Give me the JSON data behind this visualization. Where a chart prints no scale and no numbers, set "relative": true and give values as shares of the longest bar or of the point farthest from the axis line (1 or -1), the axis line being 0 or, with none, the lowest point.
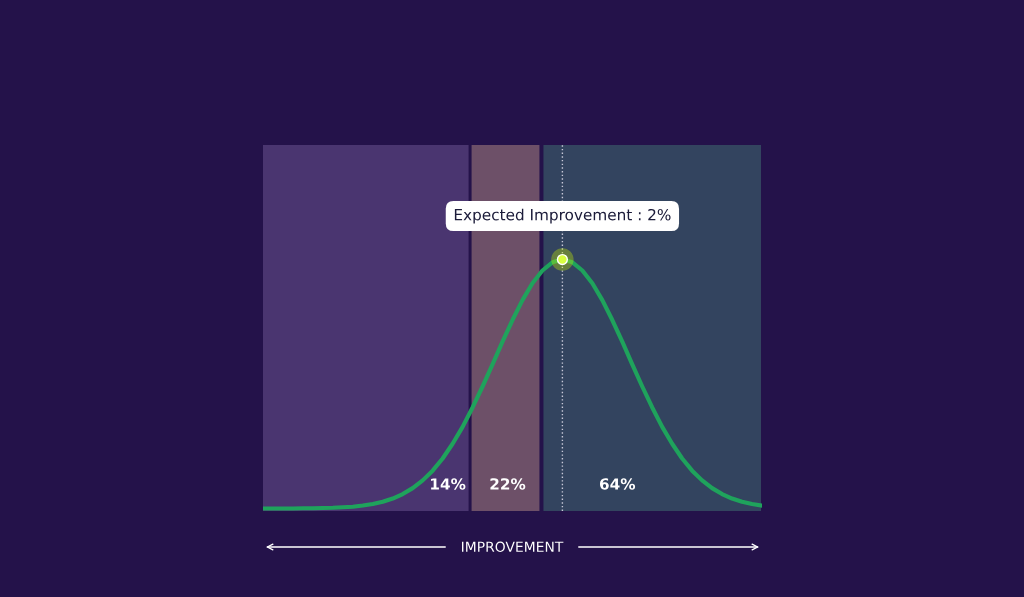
{
  "chart_data": {
    "type": "line",
    "relative": true,
    "xlabel": "IMPROVEMENT",
    "categories": [
      null,
      null,
      null,
      null,
      null,
      null,
      null,
      null,
      null,
      null,
      null,
      null,
      null,
      null,
      null,
      null,
      null,
      null,
      null,
      null,
      null,
      null,
      null,
      null,
      null,
      null,
      null,
      null,
      null,
      null,
      null,
      null,
      null,
      null,
      null,
      null,
      null,
      null,
      null,
      null,
      null,
      null,
      null,
      null,
      null,
      null,
      null,
      null,
      null,
      null,
      null
    ],
    "series": [
      {
        "color": "#1fa35c",
        "values": [
          0,
          0,
          0,
          0,
          0.001,
          0.001,
          0.002,
          0.003,
          0.005,
          0.007,
          0.012,
          0.018,
          0.027,
          0.04,
          0.058,
          0.082,
          0.113,
          0.152,
          0.201,
          0.26,
          0.328,
          0.406,
          0.49,
          0.579,
          0.67,
          0.757,
          0.837,
          0.905,
          0.956,
          0.989,
          1,
          0.989,
          0.956,
          0.905,
          0.837,
          0.757,
          0.67,
          0.579,
          0.49,
          0.406,
          0.328,
          0.26,
          0.201,
          0.152,
          0.113,
          0.082,
          0.058,
          0.04,
          0.027,
          0.018,
          0.012
        ]
      }
    ],
    "annotations": [
      {
        "text": "Expected Improvement : 2%",
        "y": 1
      },
      "14%",
      "22%",
      "64%"
    ],
    "grid": false,
    "legend": false,
    "tick_labels": false,
    "marker": "none",
    "line_style": "solid"
  }
}
